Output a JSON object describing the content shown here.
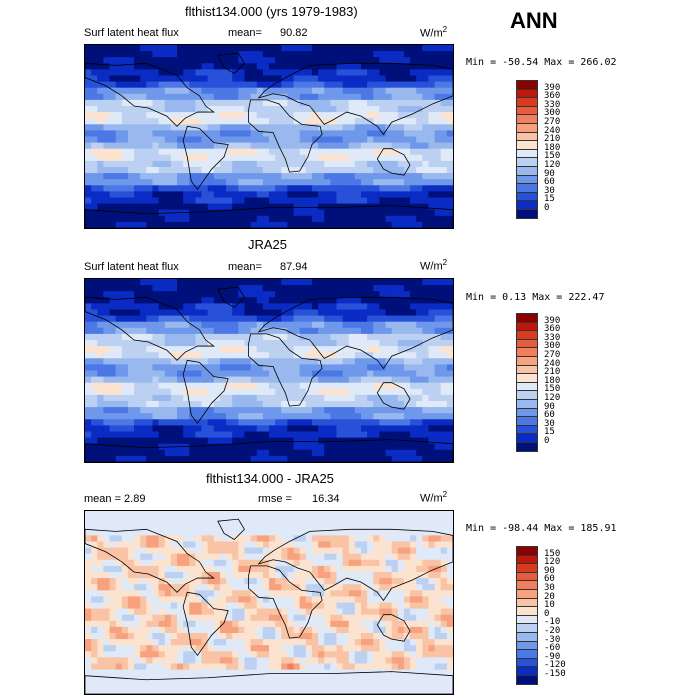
{
  "season": "ANN",
  "panels": [
    {
      "title": "flthist134.000 (yrs 1979-1983)",
      "variable": "Surf latent heat flux",
      "stat_label": "mean=",
      "stat_value": "90.82",
      "units": "W/m",
      "units_exp": "2",
      "minmax": "Min = -50.54 Max = 266.02",
      "colorbar": {
        "labels": [
          "390",
          "360",
          "330",
          "300",
          "270",
          "240",
          "210",
          "180",
          "150",
          "120",
          "90",
          "60",
          "30",
          "15",
          "0"
        ],
        "colors": [
          "#8b0000",
          "#c0170d",
          "#d83a22",
          "#e85c3e",
          "#f37e5d",
          "#f7a17f",
          "#f9c3a6",
          "#fbe3d0",
          "#dfe9f7",
          "#bcd1f2",
          "#98b8ee",
          "#6f98ea",
          "#4c78e6",
          "#2851d9",
          "#0a2bc4",
          "#00107a"
        ]
      },
      "fill_profile": "latent"
    },
    {
      "title": "JRA25",
      "variable": "Surf latent heat flux",
      "stat_label": "mean=",
      "stat_value": "87.94",
      "units": "W/m",
      "units_exp": "2",
      "minmax": "Min =   0.13 Max = 222.47",
      "colorbar": {
        "labels": [
          "390",
          "360",
          "330",
          "300",
          "270",
          "240",
          "210",
          "180",
          "150",
          "120",
          "90",
          "60",
          "30",
          "15",
          "0"
        ],
        "colors": [
          "#8b0000",
          "#c0170d",
          "#d83a22",
          "#e85c3e",
          "#f37e5d",
          "#f7a17f",
          "#f9c3a6",
          "#fbe3d0",
          "#dfe9f7",
          "#bcd1f2",
          "#98b8ee",
          "#6f98ea",
          "#4c78e6",
          "#2851d9",
          "#0a2bc4",
          "#00107a"
        ]
      },
      "fill_profile": "latent"
    },
    {
      "title": "flthist134.000 - JRA25",
      "variable": "mean =   2.89",
      "stat_label": "rmse =",
      "stat_value": "16.34",
      "units": "W/m",
      "units_exp": "2",
      "minmax": "Min = -98.44 Max = 185.91",
      "colorbar": {
        "labels": [
          "150",
          "120",
          "90",
          "60",
          "30",
          "20",
          "10",
          "0",
          "-10",
          "-20",
          "-30",
          "-60",
          "-90",
          "-120",
          "-150"
        ],
        "colors": [
          "#8b0000",
          "#c0170d",
          "#d83a22",
          "#e85c3e",
          "#f37e5d",
          "#f7a17f",
          "#f9c3a6",
          "#fbe3d0",
          "#dfe9f7",
          "#bcd1f2",
          "#98b8ee",
          "#6f98ea",
          "#4c78e6",
          "#2851d9",
          "#0a2bc4",
          "#00107a"
        ]
      },
      "fill_profile": "diff"
    }
  ],
  "chart_data": {
    "type": "heatmap",
    "description_values": [
      {
        "title": "flthist134.000 (yrs 1979-1983)",
        "mean": 90.82,
        "min": -50.54,
        "max": 266.02
      },
      {
        "title": "JRA25",
        "mean": 87.94,
        "min": 0.13,
        "max": 222.47
      },
      {
        "title": "flthist134.000 - JRA25",
        "mean": 2.89,
        "rmse": 16.34,
        "min": -98.44,
        "max": 185.91
      }
    ]
  }
}
